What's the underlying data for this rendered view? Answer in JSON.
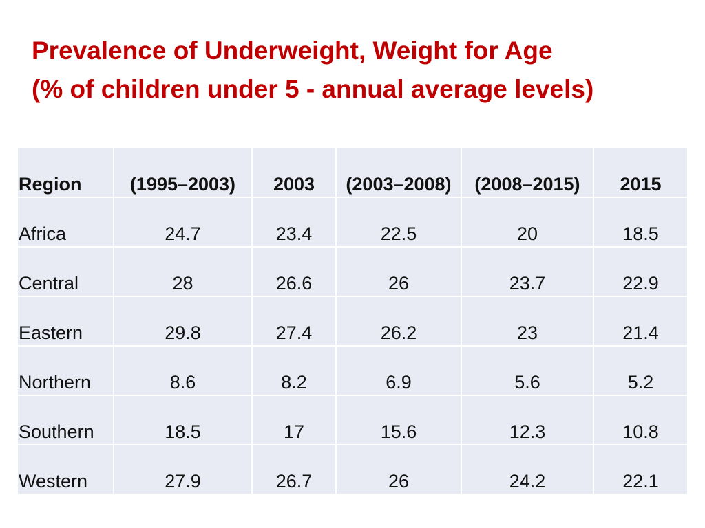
{
  "title": {
    "line1": "Prevalence of Underweight, Weight for Age",
    "line2": "(% of children under 5 - annual average levels)"
  },
  "table": {
    "headers": [
      "Region",
      "(1995–2003)",
      "2003",
      "(2003–2008)",
      "(2008–2015)",
      "2015"
    ],
    "rows": [
      [
        "Africa",
        "24.7",
        "23.4",
        "22.5",
        "20",
        "18.5"
      ],
      [
        "Central",
        "28",
        "26.6",
        "26",
        "23.7",
        "22.9"
      ],
      [
        "Eastern",
        "29.8",
        "27.4",
        "26.2",
        "23",
        "21.4"
      ],
      [
        "Northern",
        "8.6",
        "8.2",
        "6.9",
        "5.6",
        "5.2"
      ],
      [
        "Southern",
        "18.5",
        "17",
        "15.6",
        "12.3",
        "10.8"
      ],
      [
        "Western",
        "27.9",
        "26.7",
        "26",
        "24.2",
        "22.1"
      ]
    ]
  },
  "colors": {
    "title": "#c00000",
    "cell_background": "#e9ebf4"
  }
}
